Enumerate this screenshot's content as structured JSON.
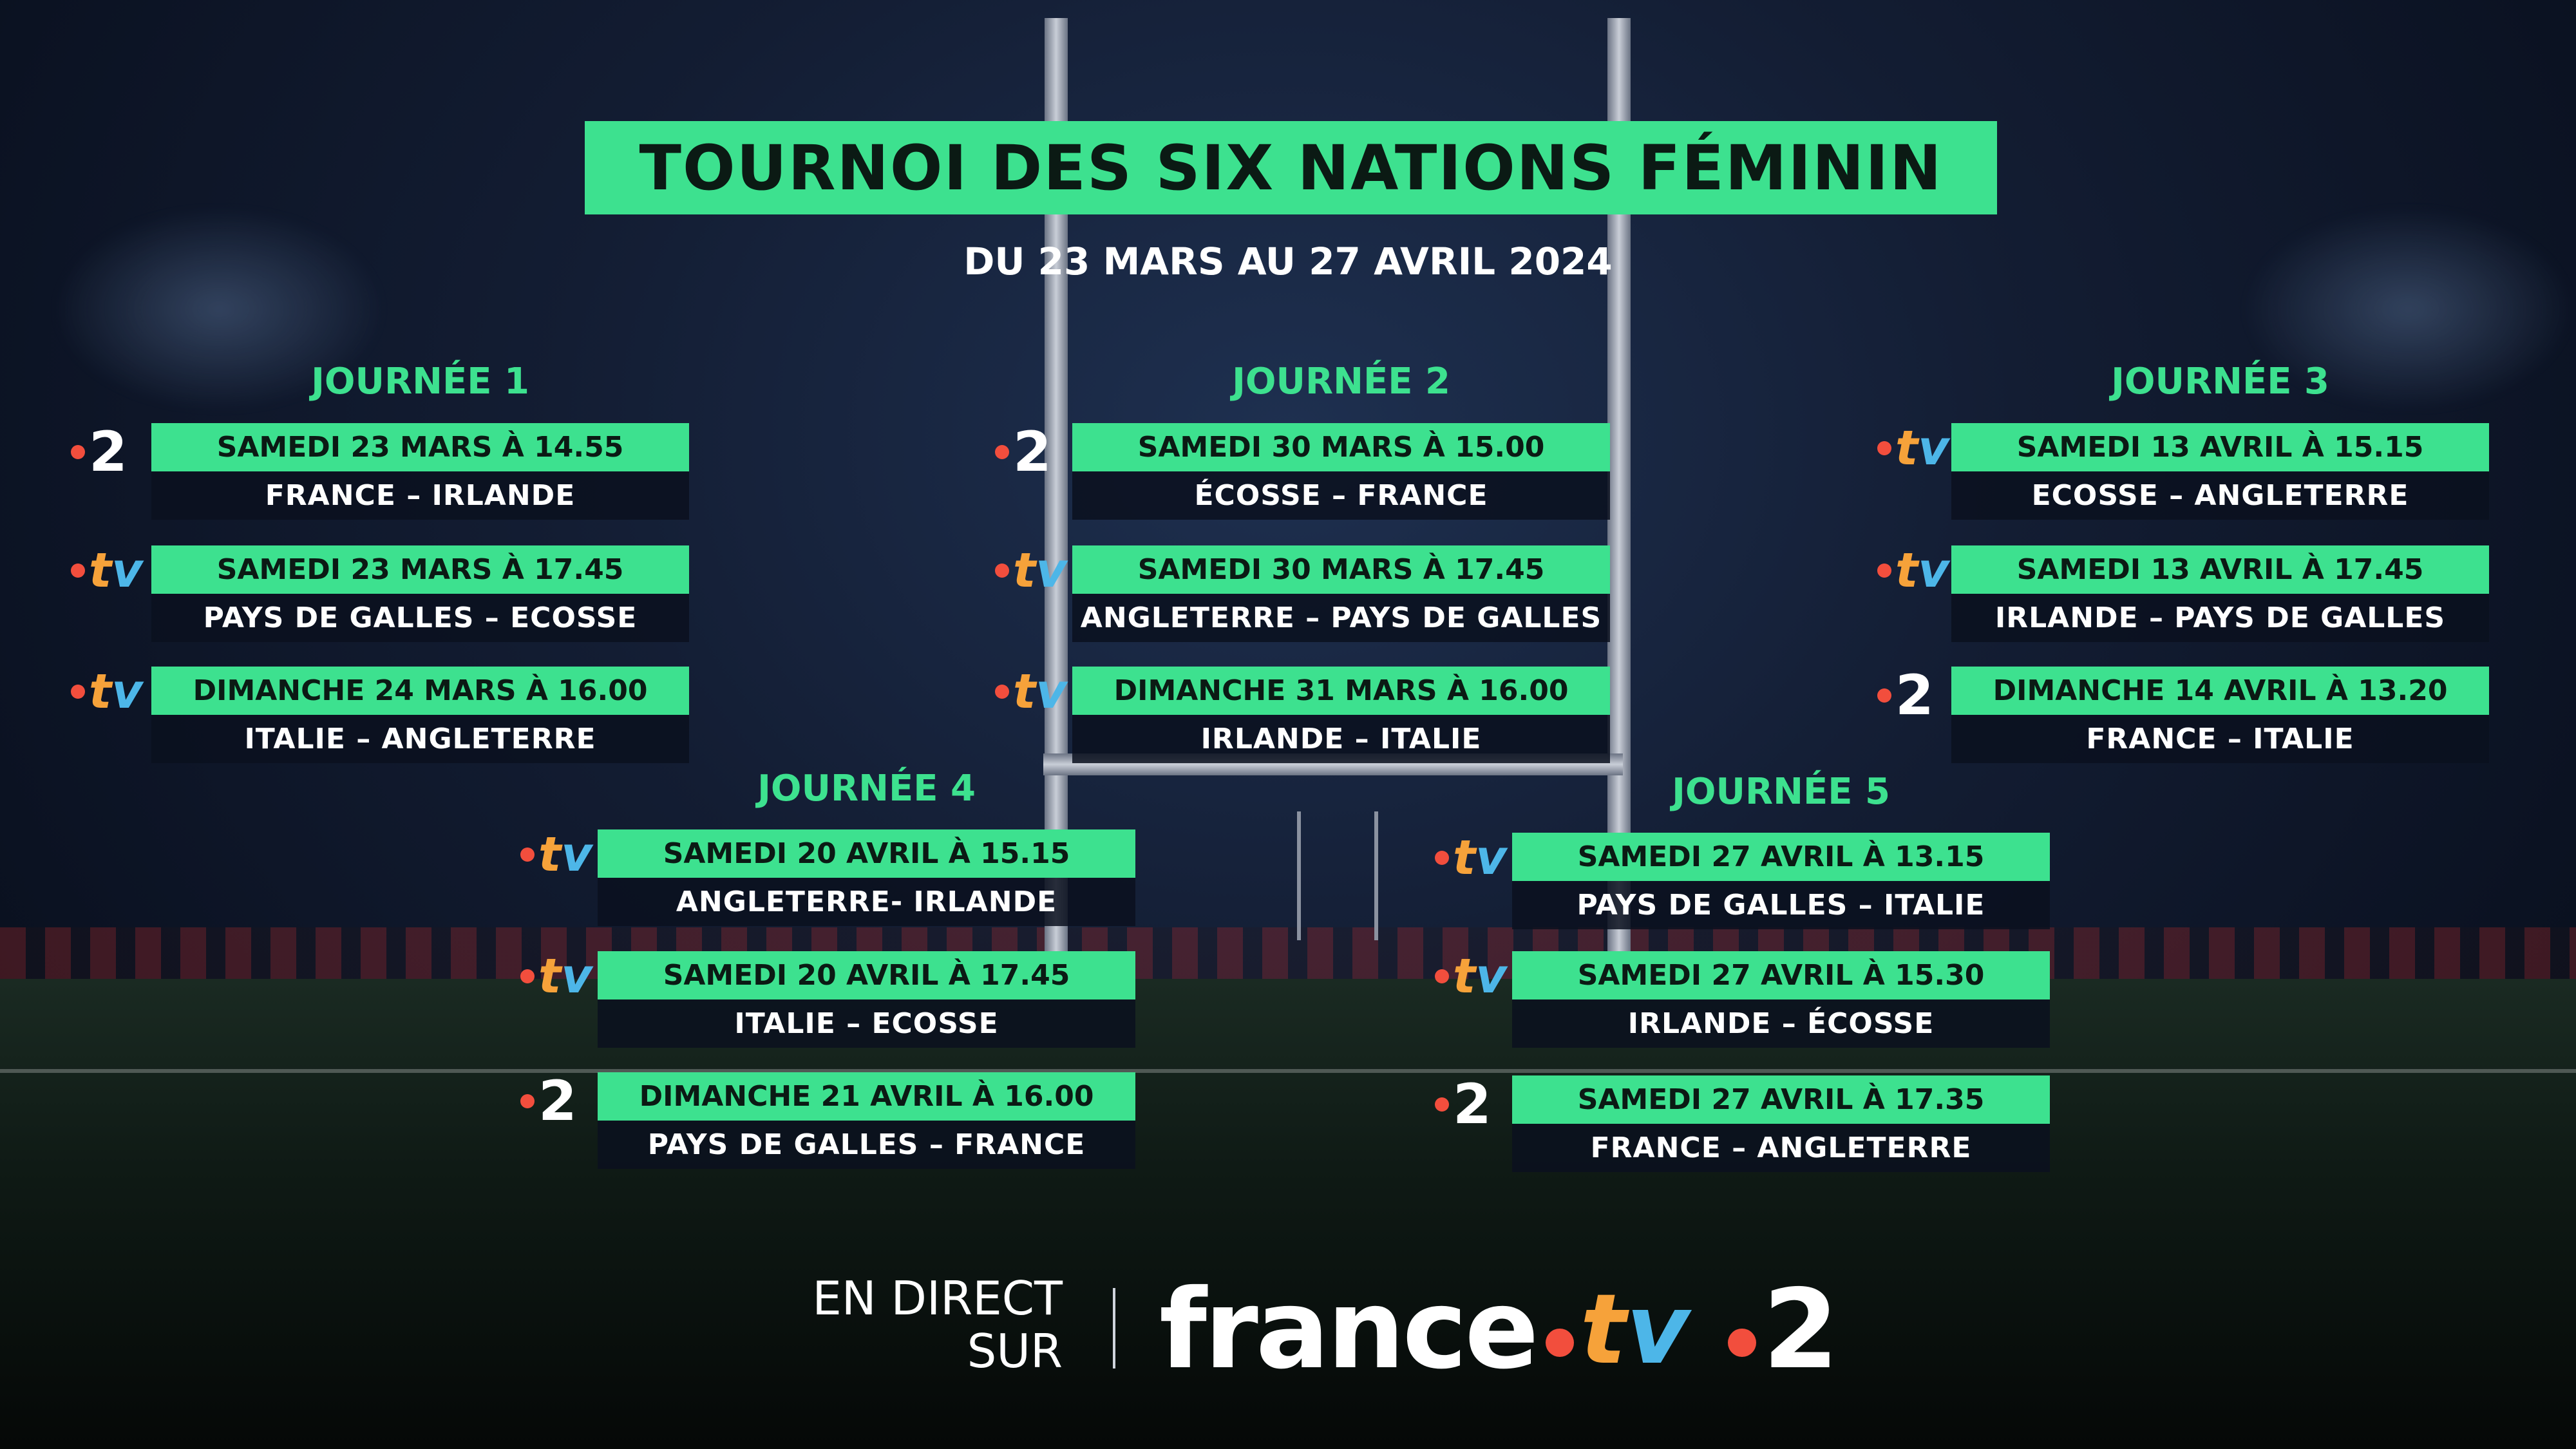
{
  "title": "TOURNOI DES SIX NATIONS FÉMININ",
  "subtitle": "DU 23 MARS AU 27 AVRIL 2024",
  "days": [
    {
      "label": "JOURNÉE 1",
      "matches": [
        {
          "channel": "2",
          "when": "SAMEDI 23 MARS À 14.55",
          "teams": "FRANCE – IRLANDE"
        },
        {
          "channel": "tv",
          "when": "SAMEDI 23 MARS À 17.45",
          "teams": "PAYS DE GALLES – ECOSSE"
        },
        {
          "channel": "tv",
          "when": "DIMANCHE 24 MARS À 16.00",
          "teams": "ITALIE – ANGLETERRE"
        }
      ]
    },
    {
      "label": "JOURNÉE 2",
      "matches": [
        {
          "channel": "2",
          "when": "SAMEDI 30 MARS À 15.00",
          "teams": "ÉCOSSE – FRANCE"
        },
        {
          "channel": "tv",
          "when": "SAMEDI 30 MARS À  17.45",
          "teams": "ANGLETERRE – PAYS DE GALLES"
        },
        {
          "channel": "tv",
          "when": "DIMANCHE 31 MARS À 16.00",
          "teams": "IRLANDE – ITALIE"
        }
      ]
    },
    {
      "label": "JOURNÉE 3",
      "matches": [
        {
          "channel": "tv",
          "when": "SAMEDI 13 AVRIL À 15.15",
          "teams": "ECOSSE – ANGLETERRE"
        },
        {
          "channel": "tv",
          "when": "SAMEDI 13 AVRIL À 17.45",
          "teams": "IRLANDE – PAYS DE GALLES"
        },
        {
          "channel": "2",
          "when": "DIMANCHE 14 AVRIL À 13.20",
          "teams": "FRANCE – ITALIE"
        }
      ]
    },
    {
      "label": "JOURNÉE 4",
      "matches": [
        {
          "channel": "tv",
          "when": "SAMEDI 20 AVRIL À 15.15",
          "teams": "ANGLETERRE- IRLANDE"
        },
        {
          "channel": "tv",
          "when": "SAMEDI 20 AVRIL À 17.45",
          "teams": "ITALIE – ECOSSE"
        },
        {
          "channel": "2",
          "when": "DIMANCHE 21 AVRIL À 16.00",
          "teams": "PAYS DE GALLES – FRANCE"
        }
      ]
    },
    {
      "label": "JOURNÉE 5",
      "matches": [
        {
          "channel": "tv",
          "when": "SAMEDI 27 AVRIL À 13.15",
          "teams": "PAYS DE GALLES – ITALIE"
        },
        {
          "channel": "tv",
          "when": "SAMEDI 27 AVRIL À 15.30",
          "teams": "IRLANDE – ÉCOSSE"
        },
        {
          "channel": "2",
          "when": "SAMEDI 27 AVRIL À 17.35",
          "teams": "FRANCE – ANGLETERRE"
        }
      ]
    }
  ],
  "footer": {
    "line1": "EN DIRECT",
    "line2": "SUR",
    "brand_word": "france",
    "brand_tv_t": "t",
    "brand_tv_v": "v",
    "brand_two": "2"
  },
  "colors": {
    "accent": "#3de18f",
    "dot": "#f24e3d",
    "tv_orange": "#f6a23a",
    "tv_blue": "#4db6e8"
  },
  "icons": {
    "france2": "france-2-channel-icon",
    "francetv": "france-tv-channel-icon"
  }
}
